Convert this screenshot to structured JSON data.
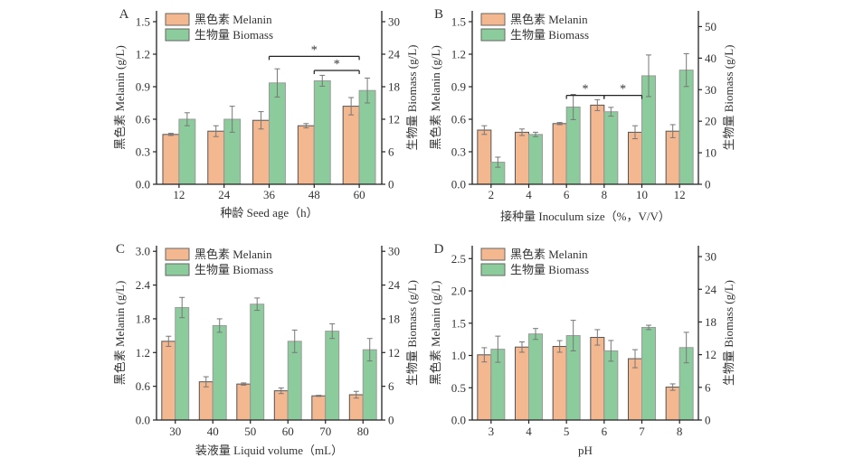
{
  "figure": {
    "legend": {
      "melanin": "黑色素 Melanin",
      "biomass": "生物量 Biomass"
    },
    "colors": {
      "melanin": "#f4b891",
      "biomass": "#8ccc9c",
      "axis": "#222222",
      "error": "#777777"
    }
  },
  "chart_data": [
    {
      "panel": "A",
      "type": "bar",
      "xlabel": "种龄 Seed age（h）",
      "ylabel": "黑色素 Melanin (g/L)",
      "y2label": "生物量 Biomass (g/L)",
      "categories": [
        "12",
        "24",
        "36",
        "48",
        "60"
      ],
      "ylim": [
        0,
        1.6
      ],
      "yticks": [
        0.0,
        0.3,
        0.6,
        0.9,
        1.2,
        1.5
      ],
      "y2lim": [
        0,
        32
      ],
      "y2ticks": [
        0,
        6,
        12,
        18,
        24,
        30
      ],
      "ytick_decimals": 1,
      "series": [
        {
          "name": "黑色素 Melanin",
          "axis": "left",
          "values": [
            0.46,
            0.49,
            0.59,
            0.54,
            0.72
          ],
          "errors": [
            0.01,
            0.05,
            0.08,
            0.02,
            0.08
          ]
        },
        {
          "name": "生物量 Biomass",
          "axis": "right",
          "values": [
            12.0,
            12.0,
            18.7,
            19.1,
            17.3
          ],
          "errors": [
            1.2,
            2.4,
            2.6,
            1.0,
            2.3
          ]
        }
      ],
      "annotations": [
        {
          "type": "significance",
          "from": "36",
          "to": "60",
          "label": "*",
          "level": 1.18
        },
        {
          "type": "significance",
          "from": "48",
          "to": "60",
          "label": "*",
          "level": 1.05
        }
      ]
    },
    {
      "panel": "B",
      "type": "bar",
      "xlabel": "接种量 Inoculum size（%，V/V）",
      "ylabel": "黑色素 Melanin (g/L)",
      "y2label": "生物量 Biomass (g/L)",
      "categories": [
        "2",
        "4",
        "6",
        "8",
        "10",
        "12"
      ],
      "ylim": [
        0,
        1.6
      ],
      "yticks": [
        0.0,
        0.3,
        0.6,
        0.9,
        1.2,
        1.5
      ],
      "y2lim": [
        0,
        55
      ],
      "y2ticks": [
        0,
        10,
        20,
        30,
        40,
        50
      ],
      "ytick_decimals": 1,
      "series": [
        {
          "name": "黑色素 Melanin",
          "axis": "left",
          "values": [
            0.5,
            0.48,
            0.56,
            0.73,
            0.48,
            0.49
          ],
          "errors": [
            0.04,
            0.03,
            0.01,
            0.05,
            0.06,
            0.06
          ]
        },
        {
          "name": "生物量 Biomass",
          "axis": "right",
          "values": [
            7.0,
            15.8,
            24.5,
            23.0,
            34.4,
            36.2
          ],
          "errors": [
            1.6,
            0.7,
            4.0,
            1.4,
            6.6,
            5.2
          ]
        }
      ],
      "annotations": [
        {
          "type": "significance",
          "from": "6",
          "to": "8",
          "label": "*",
          "level": 0.82
        },
        {
          "type": "significance",
          "from": "8",
          "to": "10",
          "label": "*",
          "level": 0.82
        }
      ]
    },
    {
      "panel": "C",
      "type": "bar",
      "xlabel": "装液量 Liquid volume（mL）",
      "ylabel": "黑色素 Melanin (g/L)",
      "y2label": "生物量 Biomass (g/L)",
      "categories": [
        "30",
        "40",
        "50",
        "60",
        "70",
        "80"
      ],
      "ylim": [
        0,
        3.1
      ],
      "yticks": [
        0.0,
        0.6,
        1.2,
        1.8,
        2.4,
        3.0
      ],
      "y2lim": [
        0,
        31
      ],
      "y2ticks": [
        0,
        6,
        12,
        18,
        24,
        30
      ],
      "ytick_decimals": 1,
      "series": [
        {
          "name": "黑色素 Melanin",
          "axis": "left",
          "values": [
            1.4,
            0.68,
            0.64,
            0.52,
            0.43,
            0.45
          ],
          "errors": [
            0.09,
            0.09,
            0.02,
            0.05,
            0.01,
            0.06
          ]
        },
        {
          "name": "生物量 Biomass",
          "axis": "right",
          "values": [
            20.0,
            16.8,
            20.6,
            14.0,
            15.8,
            12.5
          ],
          "errors": [
            1.8,
            1.2,
            1.1,
            2.0,
            1.3,
            2.0
          ]
        }
      ],
      "annotations": []
    },
    {
      "panel": "D",
      "type": "bar",
      "xlabel": "pH",
      "ylabel": "黑色素 Melanin (g/L)",
      "y2label": "生物量 Biomass (g/L)",
      "categories": [
        "3",
        "4",
        "5",
        "6",
        "7",
        "8"
      ],
      "ylim": [
        0,
        2.7
      ],
      "yticks": [
        0.0,
        0.5,
        1.0,
        1.5,
        2.0,
        2.5
      ],
      "y2lim": [
        0,
        32
      ],
      "y2ticks": [
        0,
        6,
        12,
        18,
        24,
        30
      ],
      "ytick_decimals": 1,
      "series": [
        {
          "name": "黑色素 Melanin",
          "axis": "left",
          "values": [
            1.01,
            1.13,
            1.14,
            1.28,
            0.95,
            0.51
          ],
          "errors": [
            0.11,
            0.08,
            0.09,
            0.12,
            0.14,
            0.05
          ]
        },
        {
          "name": "生物量 Biomass",
          "axis": "right",
          "values": [
            13.0,
            15.8,
            15.5,
            12.7,
            17.0,
            13.3
          ],
          "errors": [
            2.4,
            1.0,
            2.8,
            1.9,
            0.4,
            2.8
          ]
        }
      ],
      "annotations": []
    }
  ]
}
